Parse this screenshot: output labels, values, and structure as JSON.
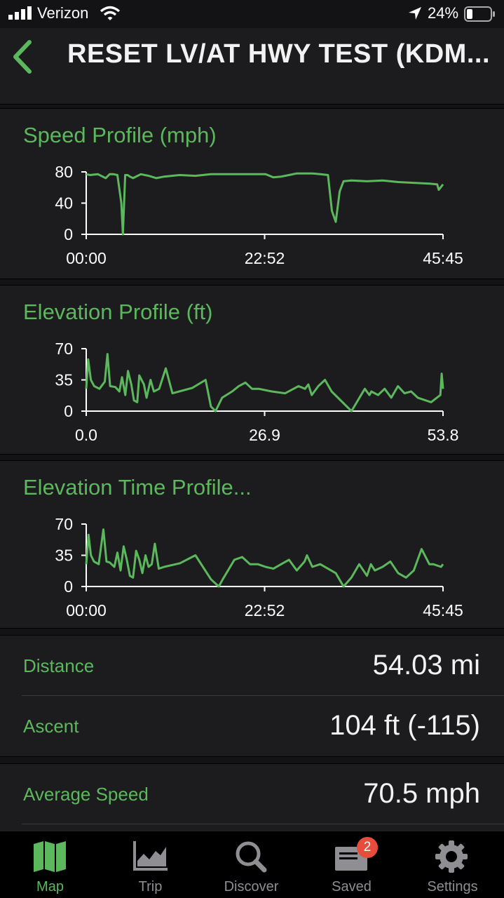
{
  "status_bar": {
    "carrier": "Verizon",
    "battery": "24%"
  },
  "header": {
    "title": "RESET LV/AT HWY TEST (KDM..."
  },
  "colors": {
    "accent": "#5cb85c",
    "background": "#1c1c1e",
    "badge": "#e74c3c"
  },
  "charts": [
    {
      "title": "Speed Profile (mph)",
      "y_ticks": [
        "80",
        "40",
        "0"
      ],
      "x_ticks": [
        "00:00",
        "22:52",
        "45:45"
      ]
    },
    {
      "title": "Elevation Profile (ft)",
      "y_ticks": [
        "70",
        "35",
        "0"
      ],
      "x_ticks": [
        "0.0",
        "26.9",
        "53.8"
      ]
    },
    {
      "title": "Elevation Time Profile...",
      "y_ticks": [
        "70",
        "35",
        "0"
      ],
      "x_ticks": [
        "00:00",
        "22:52",
        "45:45"
      ]
    }
  ],
  "chart_data": [
    {
      "type": "line",
      "title": "Speed Profile (mph)",
      "ylim": [
        0,
        80
      ],
      "x_range": [
        "00:00",
        "45:45"
      ],
      "x": [
        0,
        0.5,
        1.5,
        2.5,
        3,
        3.5,
        4.0,
        4.5,
        4.7,
        5.0,
        5.3,
        5.6,
        6.0,
        7,
        8,
        9,
        10,
        12,
        14,
        16,
        18,
        20,
        22,
        23,
        24,
        25,
        26,
        27,
        28,
        29,
        30,
        31,
        31.5,
        32,
        32.5,
        33,
        34,
        36,
        38,
        40,
        42,
        44,
        45,
        45.2,
        45.75
      ],
      "values": [
        77,
        76,
        77,
        72,
        77,
        77,
        76,
        40,
        0,
        76,
        76,
        74,
        72,
        77,
        75,
        72,
        74,
        76,
        75,
        77,
        77,
        77,
        77,
        77,
        73,
        74,
        76,
        78,
        78,
        78,
        77,
        76,
        30,
        16,
        55,
        68,
        69,
        68,
        69,
        67,
        66,
        65,
        64,
        57,
        64
      ]
    },
    {
      "type": "line",
      "title": "Elevation Profile (ft)",
      "ylim": [
        0,
        70
      ],
      "x_range": [
        0.0,
        53.8
      ],
      "x": [
        0,
        0.3,
        0.7,
        1.2,
        2,
        2.8,
        3.2,
        3.6,
        4.4,
        5,
        5.4,
        5.9,
        6.3,
        6.8,
        7.2,
        7.7,
        8.0,
        8.7,
        9.1,
        9.7,
        10.2,
        11,
        12,
        13,
        14,
        16,
        18,
        18.8,
        19.5,
        20.5,
        22,
        23,
        24,
        25,
        26,
        28,
        30,
        32,
        33,
        33.5,
        34,
        35,
        36,
        37,
        40,
        42,
        42.7,
        43,
        44,
        45,
        46,
        47,
        48,
        49,
        50,
        52,
        53.4,
        53.6,
        53.8
      ],
      "values": [
        25,
        58,
        35,
        28,
        25,
        33,
        64,
        28,
        27,
        22,
        38,
        18,
        45,
        30,
        12,
        10,
        40,
        30,
        15,
        35,
        22,
        25,
        48,
        20,
        22,
        26,
        35,
        5,
        0,
        15,
        22,
        28,
        32,
        25,
        25,
        22,
        20,
        28,
        25,
        30,
        18,
        28,
        35,
        22,
        0,
        25,
        18,
        22,
        18,
        25,
        15,
        28,
        20,
        22,
        15,
        10,
        18,
        42,
        25
      ]
    },
    {
      "type": "line",
      "title": "Elevation Time Profile...",
      "ylim": [
        0,
        70
      ],
      "x_range": [
        "00:00",
        "45:45"
      ],
      "x": [
        0,
        0.3,
        0.6,
        1,
        1.6,
        2.2,
        2.6,
        3.0,
        3.6,
        4.0,
        4.4,
        4.8,
        5.2,
        5.6,
        6.0,
        6.4,
        6.8,
        7.2,
        7.6,
        8.0,
        8.4,
        8.8,
        9.3,
        10,
        12,
        14,
        16,
        17,
        17.5,
        19,
        20,
        21,
        22,
        23,
        24,
        25,
        26,
        27,
        28,
        28.3,
        29,
        30,
        31,
        32,
        33,
        34,
        35,
        36,
        36.5,
        37,
        38,
        39,
        40,
        41,
        42,
        43,
        44,
        44.5,
        45.5,
        45.75
      ],
      "values": [
        25,
        58,
        35,
        28,
        25,
        64,
        28,
        27,
        22,
        38,
        18,
        45,
        30,
        12,
        10,
        40,
        30,
        15,
        35,
        22,
        25,
        48,
        20,
        22,
        26,
        35,
        8,
        0,
        8,
        30,
        33,
        25,
        25,
        22,
        20,
        25,
        30,
        18,
        28,
        35,
        22,
        25,
        20,
        15,
        0,
        10,
        25,
        12,
        25,
        18,
        22,
        28,
        15,
        10,
        18,
        42,
        25,
        25,
        22,
        25
      ]
    }
  ],
  "stats": [
    {
      "label": "Distance",
      "value": "54.03 mi"
    },
    {
      "label": "Ascent",
      "value": "104 ft (-115)"
    },
    {
      "label": "Average Speed",
      "value": "70.5 mph"
    }
  ],
  "tabs": [
    {
      "label": "Map",
      "icon": "map-icon",
      "active": true
    },
    {
      "label": "Trip",
      "icon": "chart-icon",
      "active": false
    },
    {
      "label": "Discover",
      "icon": "search-icon",
      "active": false
    },
    {
      "label": "Saved",
      "icon": "saved-icon",
      "active": false,
      "badge": "2"
    },
    {
      "label": "Settings",
      "icon": "gear-icon",
      "active": false
    }
  ]
}
